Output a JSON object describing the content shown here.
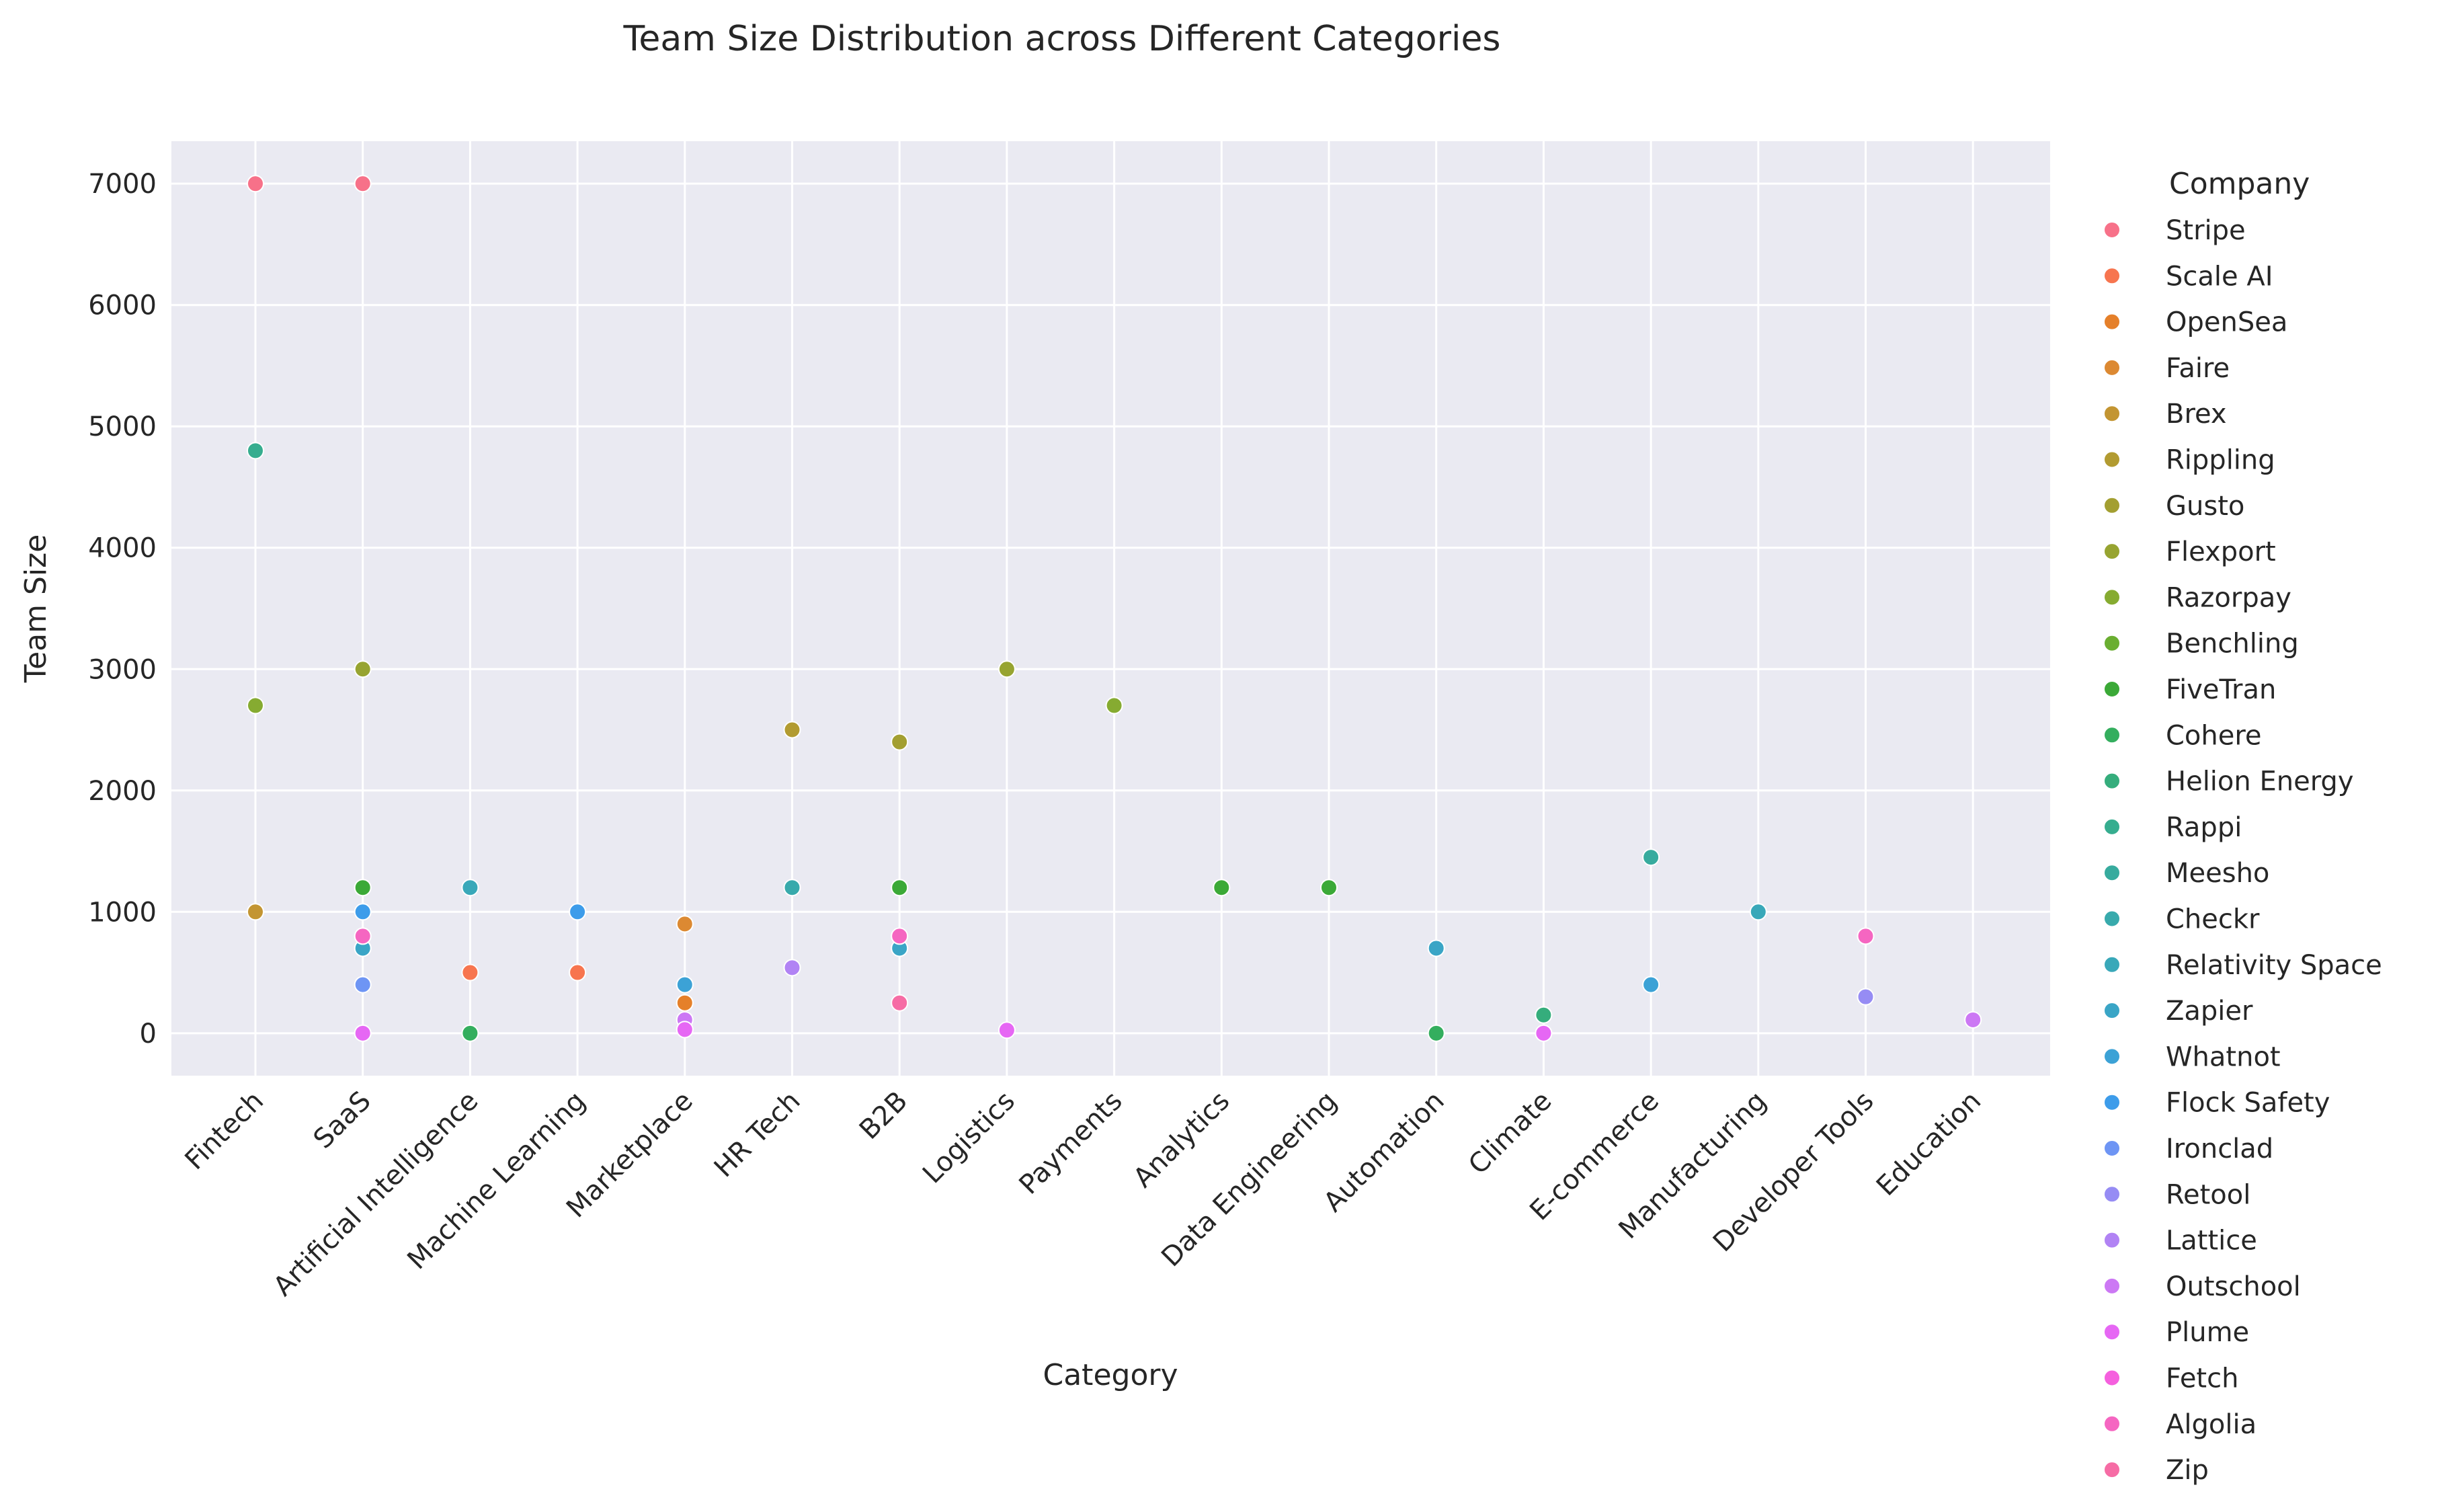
{
  "chart_data": {
    "type": "scatter",
    "title": "Team Size Distribution across Different Categories",
    "xlabel": "Category",
    "ylabel": "Team Size",
    "categories": [
      "Fintech",
      "SaaS",
      "Artificial Intelligence",
      "Machine Learning",
      "Marketplace",
      "HR Tech",
      "B2B",
      "Logistics",
      "Payments",
      "Analytics",
      "Data Engineering",
      "Automation",
      "Climate",
      "E-commerce",
      "Manufacturing",
      "Developer Tools",
      "Education"
    ],
    "yticks": [
      0,
      1000,
      2000,
      3000,
      4000,
      5000,
      6000,
      7000
    ],
    "ylim": [
      -350,
      7350
    ],
    "grid": true,
    "legend": {
      "title": "Company",
      "placement": "outside-right"
    },
    "series": [
      {
        "name": "Stripe",
        "color": "#f77189",
        "points": [
          {
            "x": "Fintech",
            "y": 7000
          },
          {
            "x": "SaaS",
            "y": 7000
          }
        ]
      },
      {
        "name": "Scale AI",
        "color": "#f7754f",
        "points": [
          {
            "x": "Artificial Intelligence",
            "y": 500
          },
          {
            "x": "Machine Learning",
            "y": 500
          }
        ]
      },
      {
        "name": "OpenSea",
        "color": "#e5802a",
        "points": [
          {
            "x": "Marketplace",
            "y": 250
          }
        ]
      },
      {
        "name": "Faire",
        "color": "#dc8932",
        "points": [
          {
            "x": "Marketplace",
            "y": 900
          }
        ]
      },
      {
        "name": "Brex",
        "color": "#c39532",
        "points": [
          {
            "x": "Fintech",
            "y": 1000
          }
        ]
      },
      {
        "name": "Rippling",
        "color": "#b29b31",
        "points": [
          {
            "x": "HR Tech",
            "y": 2500
          }
        ]
      },
      {
        "name": "Gusto",
        "color": "#a39f31",
        "points": [
          {
            "x": "B2B",
            "y": 2400
          }
        ]
      },
      {
        "name": "Flexport",
        "color": "#97a431",
        "points": [
          {
            "x": "SaaS",
            "y": 3000
          },
          {
            "x": "Logistics",
            "y": 3000
          }
        ]
      },
      {
        "name": "Razorpay",
        "color": "#86ab31",
        "points": [
          {
            "x": "Fintech",
            "y": 2700
          },
          {
            "x": "Payments",
            "y": 2700
          }
        ]
      },
      {
        "name": "Benchling",
        "color": "#6aae31",
        "points": []
      },
      {
        "name": "FiveTran",
        "color": "#3ba937",
        "points": [
          {
            "x": "SaaS",
            "y": 1200
          },
          {
            "x": "B2B",
            "y": 1200
          },
          {
            "x": "Analytics",
            "y": 1200
          },
          {
            "x": "Data Engineering",
            "y": 1200
          }
        ]
      },
      {
        "name": "Cohere",
        "color": "#34ae5e",
        "points": [
          {
            "x": "Artificial Intelligence",
            "y": 0
          },
          {
            "x": "Automation",
            "y": 0
          }
        ]
      },
      {
        "name": "Helion Energy",
        "color": "#35ad7c",
        "points": [
          {
            "x": "Climate",
            "y": 150
          }
        ]
      },
      {
        "name": "Rappi",
        "color": "#36ad8f",
        "points": [
          {
            "x": "Fintech",
            "y": 4800
          }
        ]
      },
      {
        "name": "Meesho",
        "color": "#37ab9e",
        "points": [
          {
            "x": "E-commerce",
            "y": 1450
          }
        ]
      },
      {
        "name": "Checkr",
        "color": "#38aaac",
        "points": [
          {
            "x": "HR Tech",
            "y": 1200
          }
        ]
      },
      {
        "name": "Relativity Space",
        "color": "#39a8b9",
        "points": [
          {
            "x": "Artificial Intelligence",
            "y": 1200
          },
          {
            "x": "Manufacturing",
            "y": 1000
          }
        ]
      },
      {
        "name": "Zapier",
        "color": "#3aa5c6",
        "points": [
          {
            "x": "SaaS",
            "y": 700
          },
          {
            "x": "B2B",
            "y": 700
          },
          {
            "x": "Automation",
            "y": 700
          }
        ]
      },
      {
        "name": "Whatnot",
        "color": "#3ca2d6",
        "points": [
          {
            "x": "Marketplace",
            "y": 400
          },
          {
            "x": "E-commerce",
            "y": 400
          }
        ]
      },
      {
        "name": "Flock Safety",
        "color": "#3d9cea",
        "points": [
          {
            "x": "SaaS",
            "y": 1000
          },
          {
            "x": "Machine Learning",
            "y": 1000
          }
        ]
      },
      {
        "name": "Ironclad",
        "color": "#6e95f4",
        "points": [
          {
            "x": "SaaS",
            "y": 400
          }
        ]
      },
      {
        "name": "Retool",
        "color": "#968cf4",
        "points": [
          {
            "x": "Developer Tools",
            "y": 300
          }
        ]
      },
      {
        "name": "Lattice",
        "color": "#b183f4",
        "points": [
          {
            "x": "HR Tech",
            "y": 540
          }
        ]
      },
      {
        "name": "Outschool",
        "color": "#cc78f4",
        "points": [
          {
            "x": "Marketplace",
            "y": 110
          },
          {
            "x": "Education",
            "y": 110
          }
        ]
      },
      {
        "name": "Plume",
        "color": "#e667f4",
        "points": [
          {
            "x": "SaaS",
            "y": 0
          },
          {
            "x": "Marketplace",
            "y": 30
          },
          {
            "x": "Logistics",
            "y": 25
          },
          {
            "x": "Climate",
            "y": 0
          }
        ]
      },
      {
        "name": "Fetch",
        "color": "#f560de",
        "points": []
      },
      {
        "name": "Algolia",
        "color": "#f566c1",
        "points": [
          {
            "x": "SaaS",
            "y": 800
          },
          {
            "x": "B2B",
            "y": 800
          },
          {
            "x": "Developer Tools",
            "y": 800
          }
        ]
      },
      {
        "name": "Zip",
        "color": "#f66ca5",
        "points": [
          {
            "x": "B2B",
            "y": 250
          }
        ]
      }
    ]
  }
}
